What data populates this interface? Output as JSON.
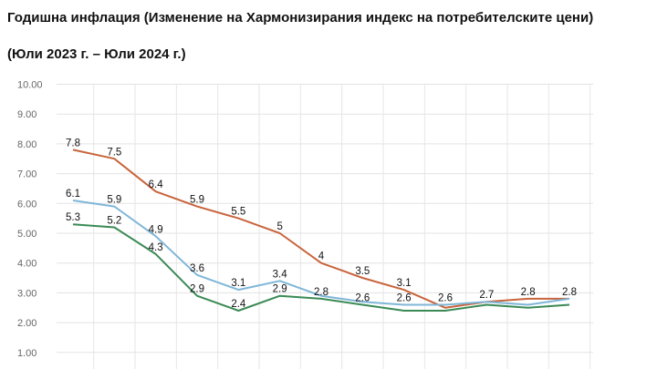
{
  "chart_data": {
    "type": "line",
    "title": "Годишна инфлация (Изменение на Хармонизирания индекс на потребителските цени)",
    "subtitle": "(Юли 2023 г. – Юли 2024 г.)",
    "xlabel": "",
    "ylabel": "",
    "ylim": [
      0,
      10
    ],
    "yticks": [
      "1.00",
      "2.00",
      "3.00",
      "4.00",
      "5.00",
      "6.00",
      "7.00",
      "8.00",
      "9.00",
      "10.00"
    ],
    "grid": true,
    "x": [
      1,
      2,
      3,
      4,
      5,
      6,
      7,
      8,
      9,
      10,
      11,
      12,
      13
    ],
    "series": [
      {
        "color": "#c8643c",
        "values": [
          7.8,
          7.5,
          6.4,
          5.9,
          5.5,
          5.0,
          4.0,
          3.5,
          3.1,
          2.5,
          2.7,
          2.8,
          2.8
        ],
        "labels": [
          "7.8",
          "7.5",
          "6.4",
          "5.9",
          "5.5",
          "5",
          "4",
          "3.5",
          "3.1",
          "",
          "2.7",
          "2.8",
          "2.8"
        ]
      },
      {
        "color": "#7fb6d8",
        "values": [
          6.1,
          5.9,
          4.9,
          3.6,
          3.1,
          3.4,
          2.9,
          2.7,
          2.6,
          2.6,
          2.7,
          2.6,
          2.8
        ],
        "labels": [
          "6.1",
          "5.9",
          "4.9",
          "3.6",
          "3.1",
          "3.4",
          "",
          "",
          "2.6",
          "2.6",
          "",
          "",
          ""
        ]
      },
      {
        "color": "#3a8a55",
        "values": [
          5.3,
          5.2,
          4.3,
          2.9,
          2.4,
          2.9,
          2.8,
          2.6,
          2.4,
          2.4,
          2.6,
          2.5,
          2.6
        ],
        "labels": [
          "5.3",
          "5.2",
          "4.3",
          "2.9",
          "2.4",
          "2.9",
          "2.8",
          "2.6",
          "",
          "",
          "",
          "",
          ""
        ]
      }
    ]
  }
}
